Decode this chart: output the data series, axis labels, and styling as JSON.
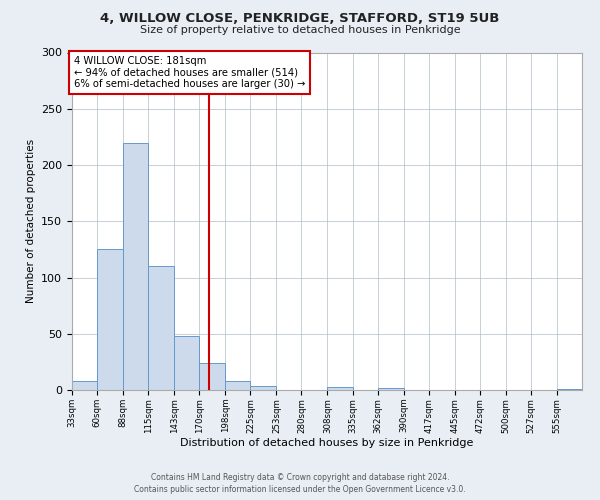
{
  "title": "4, WILLOW CLOSE, PENKRIDGE, STAFFORD, ST19 5UB",
  "subtitle": "Size of property relative to detached houses in Penkridge",
  "xlabel": "Distribution of detached houses by size in Penkridge",
  "ylabel": "Number of detached properties",
  "bin_edges": [
    33,
    60,
    88,
    115,
    143,
    170,
    198,
    225,
    253,
    280,
    308,
    335,
    362,
    390,
    417,
    445,
    472,
    500,
    527,
    555,
    582
  ],
  "bar_heights": [
    8,
    125,
    220,
    110,
    48,
    24,
    8,
    4,
    0,
    0,
    3,
    0,
    2,
    0,
    0,
    0,
    0,
    0,
    0,
    1
  ],
  "bar_color": "#ccdaeb",
  "bar_edge_color": "#6699cc",
  "vline_x": 181,
  "vline_color": "#cc0000",
  "ylim": [
    0,
    300
  ],
  "yticks": [
    0,
    50,
    100,
    150,
    200,
    250,
    300
  ],
  "annotation_title": "4 WILLOW CLOSE: 181sqm",
  "annotation_line1": "← 94% of detached houses are smaller (514)",
  "annotation_line2": "6% of semi-detached houses are larger (30) →",
  "annotation_box_color": "#cc0000",
  "footer_line1": "Contains HM Land Registry data © Crown copyright and database right 2024.",
  "footer_line2": "Contains public sector information licensed under the Open Government Licence v3.0.",
  "bg_color": "#e8eef4",
  "plot_bg_color": "#ffffff",
  "grid_color": "#b0bcc8"
}
